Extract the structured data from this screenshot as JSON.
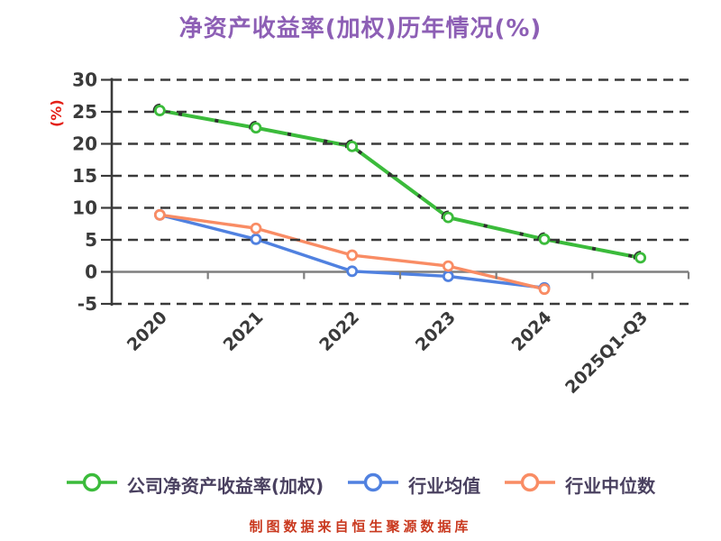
{
  "chart_data": {
    "type": "line",
    "title": "净资产收益率(加权)历年情况(%)",
    "ylabel": "(%)",
    "xlabel": "",
    "categories": [
      "2020",
      "2021",
      "2022",
      "2023",
      "2024",
      "2025Q1-Q3"
    ],
    "yticks": [
      30,
      25,
      20,
      15,
      10,
      5,
      0,
      -5
    ],
    "ylim": [
      -5,
      30
    ],
    "grid": "horizontal-dashed",
    "legend_position": "bottom",
    "x_tick_style": "between-categories",
    "x_label_rotation_deg": 45,
    "series": [
      {
        "name": "公司净资产收益率(加权)",
        "color": "#3bbb3b",
        "values": [
          25.2,
          22.5,
          19.6,
          8.5,
          5.1,
          2.2
        ]
      },
      {
        "name": "行业均值",
        "color": "#5081e0",
        "values": [
          8.9,
          5.1,
          0.1,
          -0.7,
          -2.5,
          null
        ]
      },
      {
        "name": "行业中位数",
        "color": "#f98c64",
        "values": [
          8.9,
          6.8,
          2.6,
          0.9,
          -2.7,
          null
        ]
      }
    ],
    "source_note": "制图数据来自恒生聚源数据库"
  },
  "colors": {
    "background": "#ffffff",
    "title": "#8d5fb5",
    "axis_text": "#3a3a3a",
    "grid": "#3a3a3a",
    "zero_line": "#7e7e7e",
    "unit_label": "#e32017",
    "legend_text": "#4a4160",
    "source_note": "#c9391f",
    "marker_fill": "#ffffff",
    "line_artifact": "#2f2f2f"
  }
}
